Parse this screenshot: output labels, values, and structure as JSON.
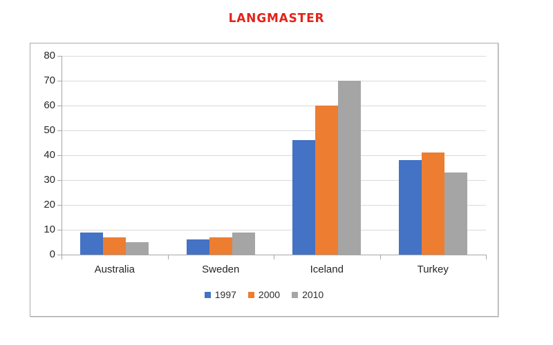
{
  "header": {
    "brand": "LANGMASTER",
    "brand_color": "#e2231a"
  },
  "chart_data": {
    "type": "bar",
    "title": "LANGMASTER",
    "categories": [
      "Australia",
      "Sweden",
      "Iceland",
      "Turkey"
    ],
    "series": [
      {
        "name": "1997",
        "color": "#4472c4",
        "values": [
          9,
          6,
          46,
          38
        ]
      },
      {
        "name": "2000",
        "color": "#ed7d31",
        "values": [
          7,
          7,
          60,
          41
        ]
      },
      {
        "name": "2010",
        "color": "#a5a5a5",
        "values": [
          5,
          9,
          70,
          33
        ]
      }
    ],
    "xlabel": "",
    "ylabel": "",
    "ylim": [
      0,
      80
    ],
    "yticks": [
      0,
      10,
      20,
      30,
      40,
      50,
      60,
      70,
      80
    ],
    "grid": true,
    "legend_position": "bottom",
    "colors": {
      "gridline": "#d9d9d9",
      "axis": "#a6a6a6",
      "tick_text": "#262626"
    }
  }
}
